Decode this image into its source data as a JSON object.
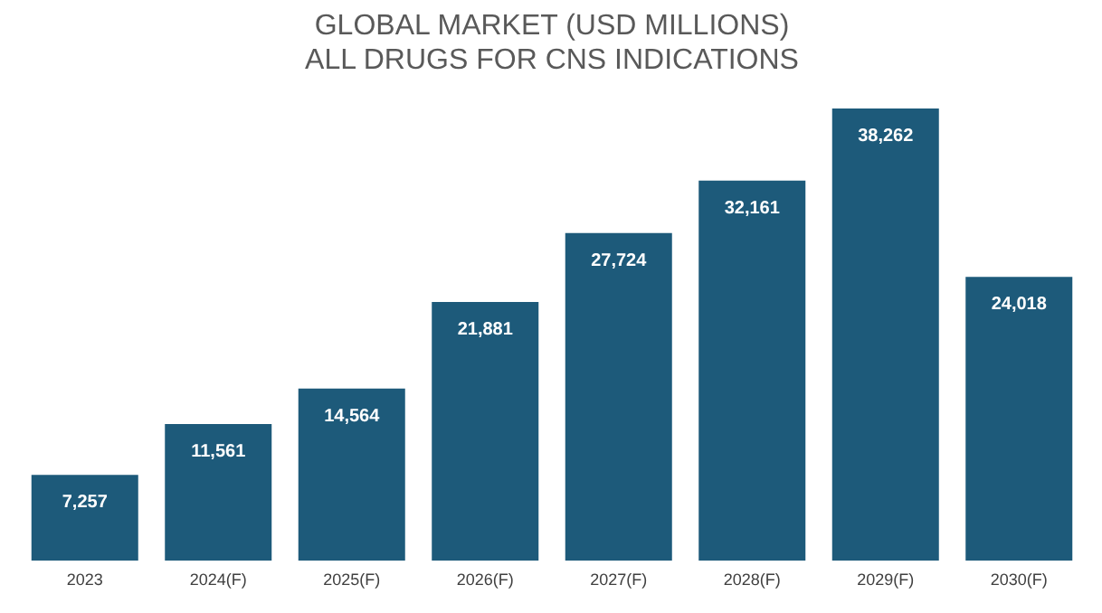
{
  "chart_data": {
    "type": "bar",
    "title": "GLOBAL MARKET (USD MILLIONS)",
    "subtitle": "ALL DRUGS FOR CNS INDICATIONS",
    "categories": [
      "2023",
      "2024(F)",
      "2025(F)",
      "2026(F)",
      "2027(F)",
      "2028(F)",
      "2029(F)",
      "2030(F)"
    ],
    "values": [
      7257,
      11561,
      14564,
      21881,
      27724,
      32161,
      38262,
      24018
    ],
    "value_labels": [
      "7,257",
      "11,561",
      "14,564",
      "21,881",
      "27,724",
      "32,161",
      "38,262",
      "24,018"
    ],
    "color": "#1d5a7a"
  }
}
